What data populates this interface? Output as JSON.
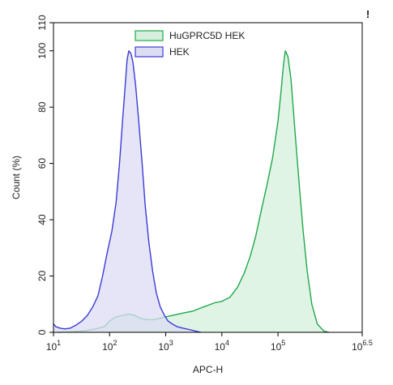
{
  "corner_mark": "!",
  "chart_data": {
    "type": "area",
    "xlabel": "APC-H",
    "ylabel": "Count (%)",
    "x_scale": "log10",
    "xlim": [
      10,
      3162277.66
    ],
    "ylim": [
      0,
      110
    ],
    "x_ticks": [
      {
        "value": 10,
        "base": "10",
        "exp": "1"
      },
      {
        "value": 100,
        "base": "10",
        "exp": "2"
      },
      {
        "value": 1000,
        "base": "10",
        "exp": "3"
      },
      {
        "value": 10000,
        "base": "10",
        "exp": "4"
      },
      {
        "value": 100000,
        "base": "10",
        "exp": "5"
      },
      {
        "value": 3162277.66,
        "base": "10",
        "exp": "6.5"
      }
    ],
    "y_ticks": [
      0,
      20,
      40,
      60,
      80,
      100,
      110
    ],
    "legend_position": "top-center",
    "series": [
      {
        "name": "HuGPRC5D HEK",
        "stroke": "#1fa84a",
        "fill": "#d6f0dd",
        "points": [
          [
            12,
            0.0
          ],
          [
            20,
            0.2
          ],
          [
            35,
            0.5
          ],
          [
            55,
            1.2
          ],
          [
            80,
            2.0
          ],
          [
            100,
            4.0
          ],
          [
            130,
            5.5
          ],
          [
            170,
            6.0
          ],
          [
            220,
            6.5
          ],
          [
            280,
            6.0
          ],
          [
            350,
            5.0
          ],
          [
            450,
            4.5
          ],
          [
            600,
            4.5
          ],
          [
            800,
            5.0
          ],
          [
            1000,
            5.5
          ],
          [
            1300,
            6.0
          ],
          [
            1700,
            6.5
          ],
          [
            2200,
            7.0
          ],
          [
            3000,
            7.5
          ],
          [
            4000,
            8.5
          ],
          [
            5500,
            9.5
          ],
          [
            7500,
            10.5
          ],
          [
            10000,
            11.0
          ],
          [
            14000,
            12.5
          ],
          [
            19000,
            16.0
          ],
          [
            25000,
            21.0
          ],
          [
            32000,
            27.0
          ],
          [
            40000,
            34.0
          ],
          [
            50000,
            43.0
          ],
          [
            63000,
            52.0
          ],
          [
            80000,
            62.0
          ],
          [
            100000,
            75.0
          ],
          [
            115000,
            87.0
          ],
          [
            125000,
            95.0
          ],
          [
            135000,
            100.0
          ],
          [
            150000,
            98.0
          ],
          [
            170000,
            90.0
          ],
          [
            200000,
            72.0
          ],
          [
            240000,
            52.0
          ],
          [
            280000,
            36.0
          ],
          [
            330000,
            22.0
          ],
          [
            400000,
            10.0
          ],
          [
            500000,
            3.0
          ],
          [
            650000,
            0.5
          ],
          [
            800000,
            0.0
          ]
        ]
      },
      {
        "name": "HEK",
        "stroke": "#3b3bd4",
        "fill": "#dcdcf4",
        "points": [
          [
            10,
            3.0
          ],
          [
            11,
            2.0
          ],
          [
            13,
            1.5
          ],
          [
            16,
            1.2
          ],
          [
            20,
            1.5
          ],
          [
            25,
            2.5
          ],
          [
            32,
            4.0
          ],
          [
            40,
            6.0
          ],
          [
            50,
            9.0
          ],
          [
            62,
            13.0
          ],
          [
            75,
            20.0
          ],
          [
            90,
            28.0
          ],
          [
            110,
            36.0
          ],
          [
            130,
            46.0
          ],
          [
            150,
            60.0
          ],
          [
            170,
            75.0
          ],
          [
            190,
            88.0
          ],
          [
            205,
            97.0
          ],
          [
            220,
            100.0
          ],
          [
            240,
            99.0
          ],
          [
            260,
            96.0
          ],
          [
            290,
            88.0
          ],
          [
            330,
            75.0
          ],
          [
            380,
            60.0
          ],
          [
            430,
            45.0
          ],
          [
            500,
            32.0
          ],
          [
            580,
            22.0
          ],
          [
            680,
            14.0
          ],
          [
            800,
            9.0
          ],
          [
            950,
            6.0
          ],
          [
            1100,
            4.0
          ],
          [
            1300,
            3.0
          ],
          [
            1600,
            2.0
          ],
          [
            2000,
            1.5
          ],
          [
            2600,
            1.0
          ],
          [
            3300,
            0.5
          ],
          [
            4200,
            0.0
          ]
        ]
      }
    ]
  }
}
